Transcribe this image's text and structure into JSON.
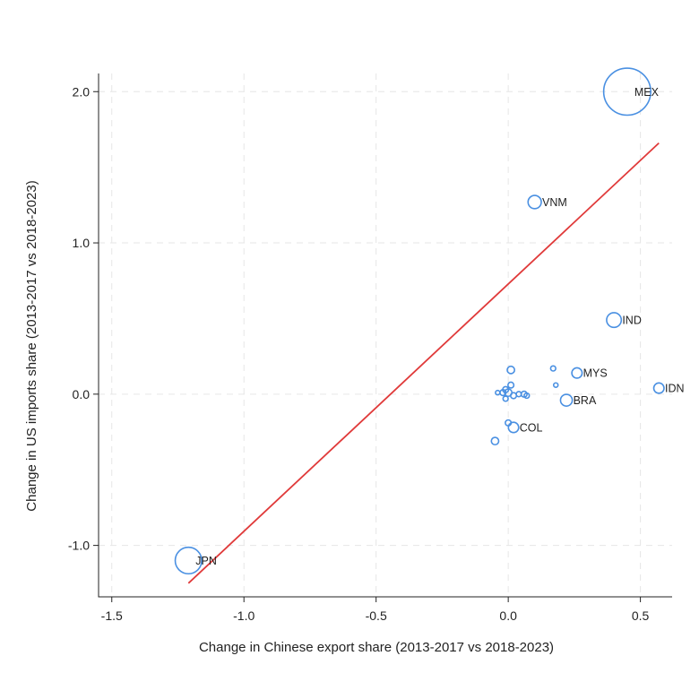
{
  "chart_data": {
    "type": "scatter",
    "title": "",
    "xlabel": "Change in Chinese export share (2013-2017 vs 2018-2023)",
    "ylabel": "Change in US imports share (2013-2017 vs 2018-2023)",
    "xlim": [
      -1.55,
      0.62
    ],
    "ylim": [
      -1.34,
      2.12
    ],
    "x_ticks": [
      -1.5,
      -1.0,
      -0.5,
      0.0,
      0.5
    ],
    "x_tick_labels": [
      "-1.5",
      "-1.0",
      "-0.5",
      "0.0",
      "0.5"
    ],
    "y_ticks": [
      -1.0,
      0.0,
      1.0,
      2.0
    ],
    "y_tick_labels": [
      "-1.0",
      "0.0",
      "1.0",
      "2.0"
    ],
    "grid": true,
    "marker_color": "#4a90e2",
    "fit_line_color": "#e03a3a",
    "fit_line": {
      "x": [
        -1.21,
        0.57
      ],
      "y": [
        -1.25,
        1.66
      ]
    },
    "points": [
      {
        "label": "MEX",
        "x": 0.45,
        "y": 2.0,
        "size": 32
      },
      {
        "label": "VNM",
        "x": 0.1,
        "y": 1.27,
        "size": 9
      },
      {
        "label": "IND",
        "x": 0.4,
        "y": 0.49,
        "size": 10
      },
      {
        "label": "MYS",
        "x": 0.26,
        "y": 0.14,
        "size": 7
      },
      {
        "label": "IDN",
        "x": 0.57,
        "y": 0.04,
        "size": 7
      },
      {
        "label": "BRA",
        "x": 0.22,
        "y": -0.04,
        "size": 8
      },
      {
        "label": "COL",
        "x": 0.02,
        "y": -0.22,
        "size": 7
      },
      {
        "label": "JPN",
        "x": -1.21,
        "y": -1.1,
        "size": 18
      },
      {
        "label": "",
        "x": 0.01,
        "y": 0.16,
        "size": 5
      },
      {
        "label": "",
        "x": 0.17,
        "y": 0.17,
        "size": 3.5
      },
      {
        "label": "",
        "x": 0.18,
        "y": 0.06,
        "size": 3
      },
      {
        "label": "",
        "x": 0.01,
        "y": 0.06,
        "size": 4
      },
      {
        "label": "",
        "x": -0.01,
        "y": 0.03,
        "size": 4
      },
      {
        "label": "",
        "x": 0.0,
        "y": 0.01,
        "size": 5
      },
      {
        "label": "",
        "x": -0.02,
        "y": 0.01,
        "size": 4
      },
      {
        "label": "",
        "x": -0.04,
        "y": 0.01,
        "size": 3
      },
      {
        "label": "",
        "x": 0.02,
        "y": -0.01,
        "size": 4
      },
      {
        "label": "",
        "x": 0.04,
        "y": 0.0,
        "size": 3.5
      },
      {
        "label": "",
        "x": 0.06,
        "y": 0.0,
        "size": 4
      },
      {
        "label": "",
        "x": 0.07,
        "y": -0.01,
        "size": 3.5
      },
      {
        "label": "",
        "x": -0.01,
        "y": -0.03,
        "size": 3.5
      },
      {
        "label": "",
        "x": 0.0,
        "y": -0.19,
        "size": 4
      },
      {
        "label": "",
        "x": -0.05,
        "y": -0.31,
        "size": 5
      }
    ]
  }
}
